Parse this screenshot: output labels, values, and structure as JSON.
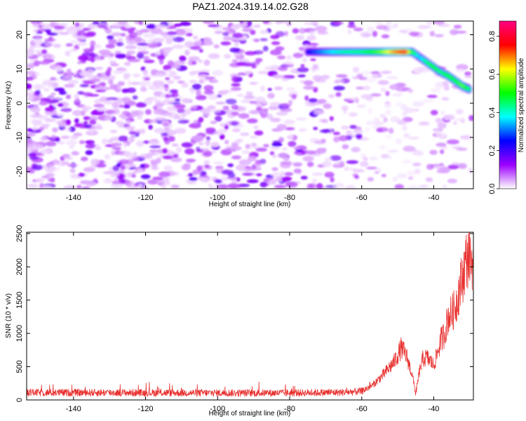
{
  "title": "PAZ1.2024.319.14.02.G28",
  "chart_data": [
    {
      "type": "heatmap",
      "xlabel": "Height of straight line (km)",
      "ylabel": "Frequency (Hz)",
      "xlim": [
        -153,
        -29
      ],
      "ylim": [
        -25,
        24
      ],
      "x_ticks": [
        -140,
        -120,
        -100,
        -80,
        -60,
        -40
      ],
      "y_ticks": [
        -20,
        -10,
        0,
        10,
        20
      ],
      "x_tick_labels": [
        "-140",
        "-120",
        "-100",
        "-80",
        "-60",
        "-40"
      ],
      "y_tick_labels": [
        "-20",
        "-10",
        "0",
        "10",
        "20"
      ],
      "colorbar": {
        "label": "Normalized spectral amplitude",
        "range": [
          0,
          0.88
        ],
        "ticks": [
          0.0,
          0.2,
          0.4,
          0.6,
          0.8
        ],
        "tick_labels": [
          "0.0",
          "0.2",
          "0.4",
          "0.6",
          "0.8"
        ],
        "colors": [
          "#ffffff",
          "#9c00ff",
          "#0000ff",
          "#00ffff",
          "#00ff00",
          "#ffff00",
          "#ff0000",
          "#ff0080"
        ]
      },
      "ridge": [
        {
          "x": -75,
          "freq": 15,
          "amp": 0.25
        },
        {
          "x": -70,
          "freq": 15,
          "amp": 0.35
        },
        {
          "x": -65,
          "freq": 15,
          "amp": 0.42
        },
        {
          "x": -60,
          "freq": 15,
          "amp": 0.45
        },
        {
          "x": -55,
          "freq": 15,
          "amp": 0.55
        },
        {
          "x": -50,
          "freq": 15,
          "amp": 0.72
        },
        {
          "x": -48,
          "freq": 15,
          "amp": 0.8
        },
        {
          "x": -46,
          "freq": 15,
          "amp": 0.5
        },
        {
          "x": -44,
          "freq": 13.5,
          "amp": 0.35
        },
        {
          "x": -42,
          "freq": 12,
          "amp": 0.45
        },
        {
          "x": -40,
          "freq": 10.5,
          "amp": 0.5
        },
        {
          "x": -38,
          "freq": 9,
          "amp": 0.45
        },
        {
          "x": -36,
          "freq": 8,
          "amp": 0.5
        },
        {
          "x": -34,
          "freq": 6.5,
          "amp": 0.5
        },
        {
          "x": -32,
          "freq": 5,
          "amp": 0.55
        },
        {
          "x": -30,
          "freq": 4,
          "amp": 0.45
        }
      ]
    },
    {
      "type": "line",
      "xlabel": "Height of straight line (km)",
      "ylabel": "SNR (10 * v/v)",
      "xlim": [
        -153,
        -29
      ],
      "ylim": [
        0,
        2520
      ],
      "x_ticks": [
        -140,
        -120,
        -100,
        -80,
        -60,
        -40
      ],
      "y_ticks": [
        0,
        500,
        1000,
        1500,
        2000,
        2500
      ],
      "x_tick_labels": [
        "-140",
        "-120",
        "-100",
        "-80",
        "-60",
        "-40"
      ],
      "y_tick_labels": [
        "0",
        "500",
        "1000",
        "1500",
        "2000",
        "2500"
      ],
      "color": "#e8312f",
      "envelope": {
        "x": [
          -153,
          -130,
          -100,
          -80,
          -65,
          -60,
          -57,
          -54,
          -51,
          -49,
          -47.5,
          -46,
          -45,
          -44,
          -43,
          -42,
          -41,
          -40,
          -39,
          -38,
          -37,
          -36,
          -35,
          -34,
          -33,
          -32,
          -31,
          -30,
          -29
        ],
        "y": [
          110,
          110,
          105,
          105,
          115,
          130,
          220,
          380,
          570,
          780,
          650,
          380,
          100,
          420,
          620,
          640,
          590,
          520,
          700,
          900,
          1000,
          1250,
          1300,
          1400,
          1650,
          1850,
          2100,
          2200,
          2050
        ]
      }
    }
  ]
}
